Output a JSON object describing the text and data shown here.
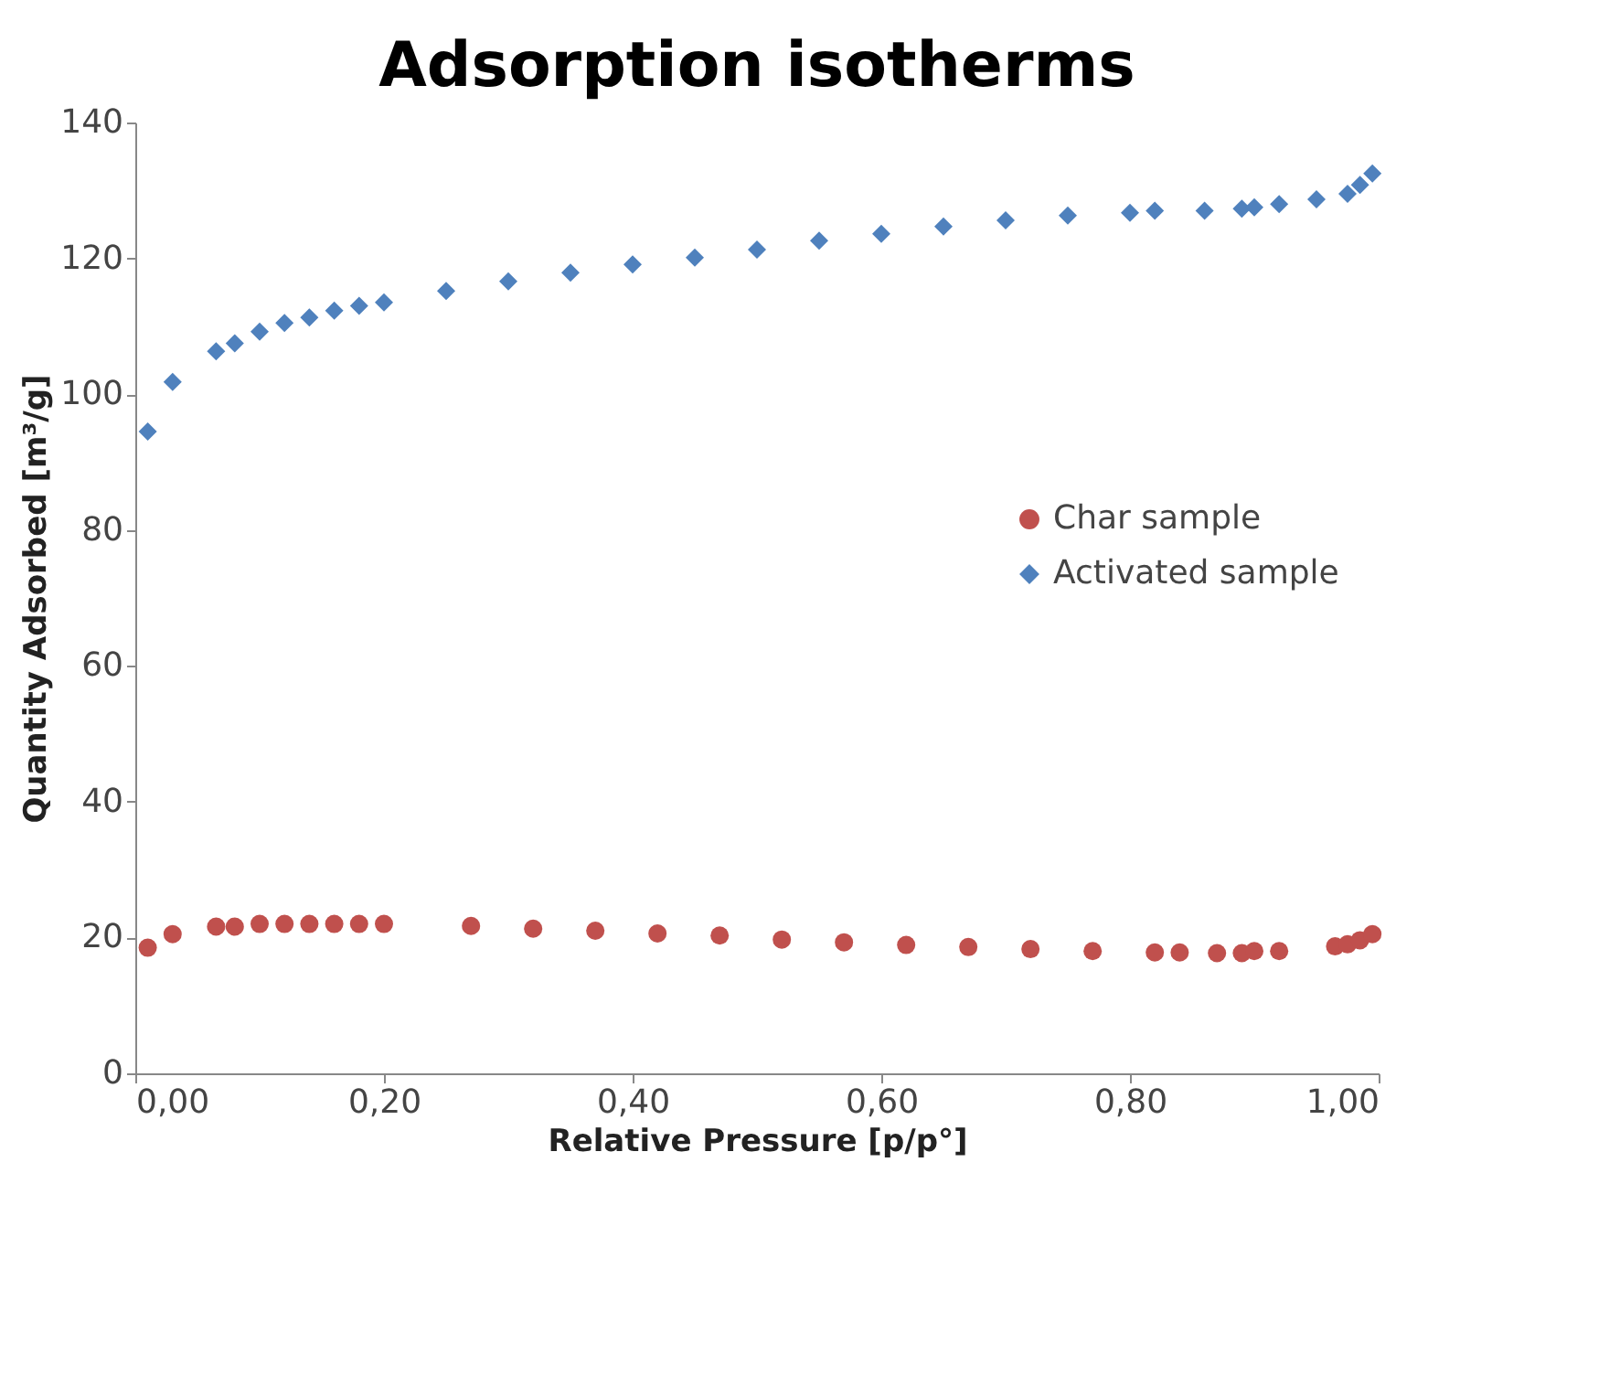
{
  "chart_data": {
    "type": "scatter",
    "title": "Adsorption isotherms",
    "xlabel": "Relative Pressure [p/p°]",
    "ylabel": "Quantity Adsorbed [m³/g]",
    "xlim": [
      0,
      1
    ],
    "xticks": [
      {
        "value": 0,
        "label": "0,00"
      },
      {
        "value": 0.2,
        "label": "0,20"
      },
      {
        "value": 0.4,
        "label": "0,40"
      },
      {
        "value": 0.6,
        "label": "0,60"
      },
      {
        "value": 0.8,
        "label": "0,80"
      },
      {
        "value": 1,
        "label": "1,00"
      }
    ],
    "ylim": [
      0,
      140
    ],
    "yticks": [
      0,
      20,
      40,
      60,
      80,
      100,
      120,
      140
    ],
    "grid": false,
    "legend": "right",
    "series": [
      {
        "name": "Char sample",
        "color": "#c0504d",
        "marker": "circle",
        "x": [
          0.01,
          0.03,
          0.065,
          0.08,
          0.1,
          0.12,
          0.14,
          0.16,
          0.18,
          0.2,
          0.27,
          0.32,
          0.37,
          0.42,
          0.47,
          0.52,
          0.57,
          0.62,
          0.67,
          0.72,
          0.77,
          0.82,
          0.84,
          0.87,
          0.89,
          0.9,
          0.92,
          0.965,
          0.975,
          0.985,
          0.995
        ],
        "values": [
          18.5,
          20.5,
          21.6,
          21.6,
          22,
          22,
          22,
          22,
          22,
          22,
          21.7,
          21.3,
          21,
          20.6,
          20.3,
          19.7,
          19.3,
          18.9,
          18.6,
          18.3,
          18,
          17.8,
          17.8,
          17.7,
          17.7,
          18,
          18,
          18.7,
          19,
          19.6,
          20.5
        ]
      },
      {
        "name": "Activated sample",
        "color": "#4f81bd",
        "marker": "diamond",
        "x": [
          0.01,
          0.03,
          0.065,
          0.08,
          0.1,
          0.12,
          0.14,
          0.16,
          0.18,
          0.2,
          0.25,
          0.3,
          0.35,
          0.4,
          0.45,
          0.5,
          0.55,
          0.6,
          0.65,
          0.7,
          0.75,
          0.8,
          0.82,
          0.86,
          0.89,
          0.9,
          0.92,
          0.95,
          0.975,
          0.985,
          0.995
        ],
        "values": [
          94.5,
          101.8,
          106.3,
          107.5,
          109.2,
          110.5,
          111.3,
          112.3,
          113,
          113.5,
          115.2,
          116.6,
          117.9,
          119.1,
          120.1,
          121.3,
          122.6,
          123.6,
          124.7,
          125.6,
          126.3,
          126.7,
          127,
          127,
          127.3,
          127.5,
          128,
          128.7,
          129.5,
          130.8,
          132.5
        ]
      }
    ]
  }
}
